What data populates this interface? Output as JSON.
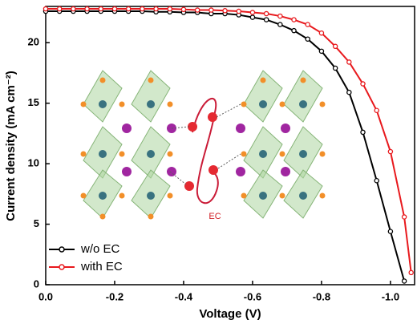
{
  "chart_data": {
    "type": "line",
    "x_label": "Voltage (V)",
    "y_label": "Current density (mA cm⁻²)",
    "annotation": "EC",
    "x": [
      0,
      -0.04,
      -0.08,
      -0.12,
      -0.16,
      -0.2,
      -0.24,
      -0.28,
      -0.32,
      -0.36,
      -0.4,
      -0.44,
      -0.48,
      -0.52,
      -0.56,
      -0.6,
      -0.64,
      -0.68,
      -0.72,
      -0.76,
      -0.8,
      -0.84,
      -0.88,
      -0.92,
      -0.96,
      -1.0,
      -1.04,
      -1.06
    ],
    "series": [
      {
        "name": "w/o EC",
        "color": "#000000",
        "values": [
          22.6,
          22.6,
          22.6,
          22.6,
          22.6,
          22.6,
          22.6,
          22.6,
          22.55,
          22.55,
          22.5,
          22.5,
          22.4,
          22.4,
          22.3,
          22.1,
          21.9,
          21.5,
          21.0,
          20.3,
          19.3,
          17.9,
          15.9,
          12.6,
          8.6,
          4.4,
          0.3,
          null
        ]
      },
      {
        "name": "with EC",
        "color": "#e8191d",
        "values": [
          22.8,
          22.8,
          22.8,
          22.8,
          22.8,
          22.8,
          22.8,
          22.8,
          22.8,
          22.8,
          22.75,
          22.7,
          22.7,
          22.65,
          22.6,
          22.5,
          22.4,
          22.2,
          21.9,
          21.5,
          20.8,
          19.7,
          18.4,
          16.6,
          14.4,
          11.0,
          5.6,
          1.0
        ]
      }
    ],
    "xlim": [
      0,
      -1.07
    ],
    "xticks": [
      {
        "value": 0,
        "label": "0.0"
      },
      -0.2,
      -0.4,
      -0.6,
      -0.8,
      {
        "value": -1.0,
        "label": "-1.0"
      }
    ],
    "ylim": [
      0,
      23
    ],
    "yticks": [
      0,
      5,
      10,
      15,
      20
    ],
    "legend": "lower left",
    "grid": false
  }
}
